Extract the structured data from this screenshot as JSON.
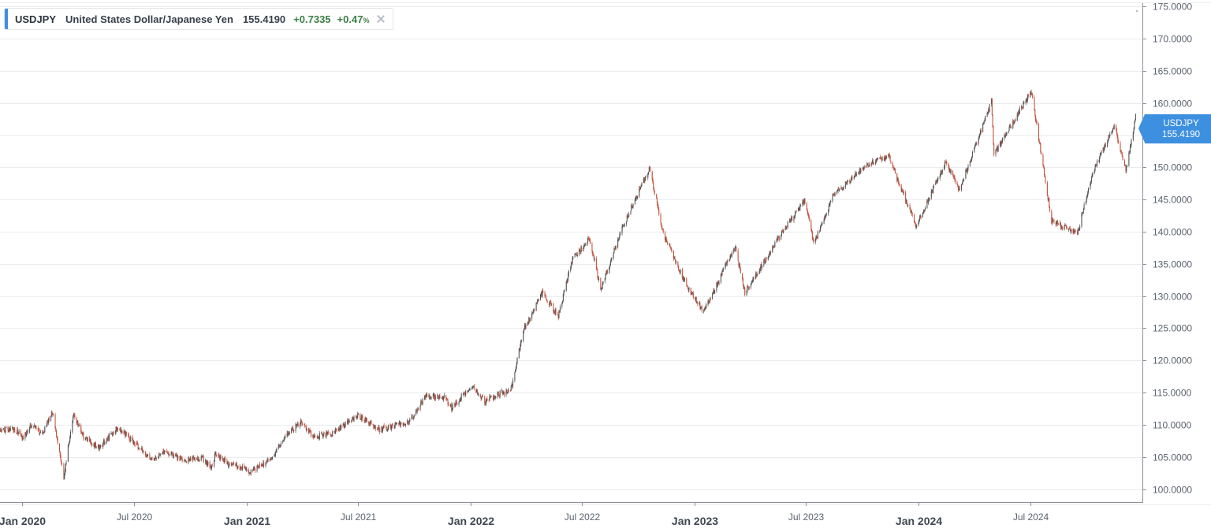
{
  "legend": {
    "symbol": "USDJPY",
    "name": "United States Dollar/Japanese Yen",
    "price": "155.4190",
    "change": "+0.7335",
    "pct": "+0.47",
    "pct_unit": "%",
    "accent_color": "#3d8fe0"
  },
  "price_tag": {
    "symbol": "USDJPY",
    "price": "155.4190",
    "color": "#3d8fe0"
  },
  "colors": {
    "up": "#555555",
    "down": "#c2543f",
    "grid": "#e9ebee",
    "axis": "#8b9097"
  },
  "chart_data": {
    "type": "candlestick",
    "ylim": [
      98,
      175.5
    ],
    "xlim": [
      "2019-11-26",
      "2024-12-31"
    ],
    "y_ticks": [
      "100.0000",
      "105.0000",
      "110.0000",
      "115.0000",
      "120.0000",
      "125.0000",
      "130.0000",
      "135.0000",
      "140.0000",
      "145.0000",
      "150.0000",
      "155.0000",
      "160.0000",
      "165.0000",
      "170.0000",
      "175.0000"
    ],
    "x_ticks": [
      {
        "date": "2020-01-01",
        "label": "Jan 2020",
        "major": true
      },
      {
        "date": "2020-07-01",
        "label": "Jul 2020",
        "major": false
      },
      {
        "date": "2021-01-01",
        "label": "Jan 2021",
        "major": true
      },
      {
        "date": "2021-07-01",
        "label": "Jul 2021",
        "major": false
      },
      {
        "date": "2022-01-01",
        "label": "Jan 2022",
        "major": true
      },
      {
        "date": "2022-07-01",
        "label": "Jul 2022",
        "major": false
      },
      {
        "date": "2023-01-01",
        "label": "Jan 2023",
        "major": true
      },
      {
        "date": "2023-07-01",
        "label": "Jul 2023",
        "major": false
      },
      {
        "date": "2024-01-01",
        "label": "Jan 2024",
        "major": true
      },
      {
        "date": "2024-07-01",
        "label": "Jul 2024",
        "major": false
      }
    ],
    "series": [
      {
        "path": [
          [
            "2019-11-26",
            109.0
          ],
          [
            "2019-12-15",
            109.5
          ],
          [
            "2020-01-03",
            108.1
          ],
          [
            "2020-01-17",
            110.2
          ],
          [
            "2020-02-03",
            108.7
          ],
          [
            "2020-02-20",
            111.9
          ],
          [
            "2020-03-09",
            101.9
          ],
          [
            "2020-03-24",
            111.5
          ],
          [
            "2020-04-10",
            108.2
          ],
          [
            "2020-05-05",
            106.4
          ],
          [
            "2020-06-05",
            109.6
          ],
          [
            "2020-07-01",
            107.3
          ],
          [
            "2020-07-31",
            104.4
          ],
          [
            "2020-08-20",
            106.0
          ],
          [
            "2020-09-20",
            104.5
          ],
          [
            "2020-10-20",
            104.8
          ],
          [
            "2020-11-05",
            103.4
          ],
          [
            "2020-11-11",
            105.5
          ],
          [
            "2020-12-01",
            104.0
          ],
          [
            "2021-01-06",
            102.8
          ],
          [
            "2021-02-10",
            104.6
          ],
          [
            "2021-03-05",
            108.3
          ],
          [
            "2021-03-31",
            110.6
          ],
          [
            "2021-04-20",
            108.0
          ],
          [
            "2021-05-20",
            108.7
          ],
          [
            "2021-07-01",
            111.5
          ],
          [
            "2021-08-05",
            109.3
          ],
          [
            "2021-09-23",
            110.5
          ],
          [
            "2021-10-20",
            114.5
          ],
          [
            "2021-11-20",
            114.2
          ],
          [
            "2021-12-01",
            112.7
          ],
          [
            "2022-01-04",
            116.1
          ],
          [
            "2022-01-25",
            113.6
          ],
          [
            "2022-02-20",
            115.0
          ],
          [
            "2022-03-07",
            115.0
          ],
          [
            "2022-03-28",
            124.7
          ],
          [
            "2022-04-28",
            130.5
          ],
          [
            "2022-05-24",
            126.9
          ],
          [
            "2022-06-15",
            135.5
          ],
          [
            "2022-07-14",
            139.0
          ],
          [
            "2022-08-01",
            131.0
          ],
          [
            "2022-09-05",
            140.5
          ],
          [
            "2022-10-20",
            150.0
          ],
          [
            "2022-11-10",
            140.0
          ],
          [
            "2022-12-20",
            131.5
          ],
          [
            "2023-01-16",
            127.5
          ],
          [
            "2023-03-08",
            137.7
          ],
          [
            "2023-03-24",
            130.5
          ],
          [
            "2023-05-30",
            140.9
          ],
          [
            "2023-07-01",
            144.9
          ],
          [
            "2023-07-14",
            138.0
          ],
          [
            "2023-08-15",
            145.5
          ],
          [
            "2023-10-03",
            150.0
          ],
          [
            "2023-11-13",
            151.8
          ],
          [
            "2023-12-28",
            140.8
          ],
          [
            "2024-02-14",
            150.8
          ],
          [
            "2024-03-08",
            146.5
          ],
          [
            "2024-04-29",
            160.2
          ],
          [
            "2024-05-03",
            151.9
          ],
          [
            "2024-07-03",
            161.9
          ],
          [
            "2024-08-05",
            141.7
          ],
          [
            "2024-09-16",
            139.6
          ],
          [
            "2024-10-10",
            149.0
          ],
          [
            "2024-11-15",
            156.5
          ],
          [
            "2024-12-04",
            149.6
          ],
          [
            "2024-12-20",
            157.8
          ]
        ]
      }
    ]
  }
}
